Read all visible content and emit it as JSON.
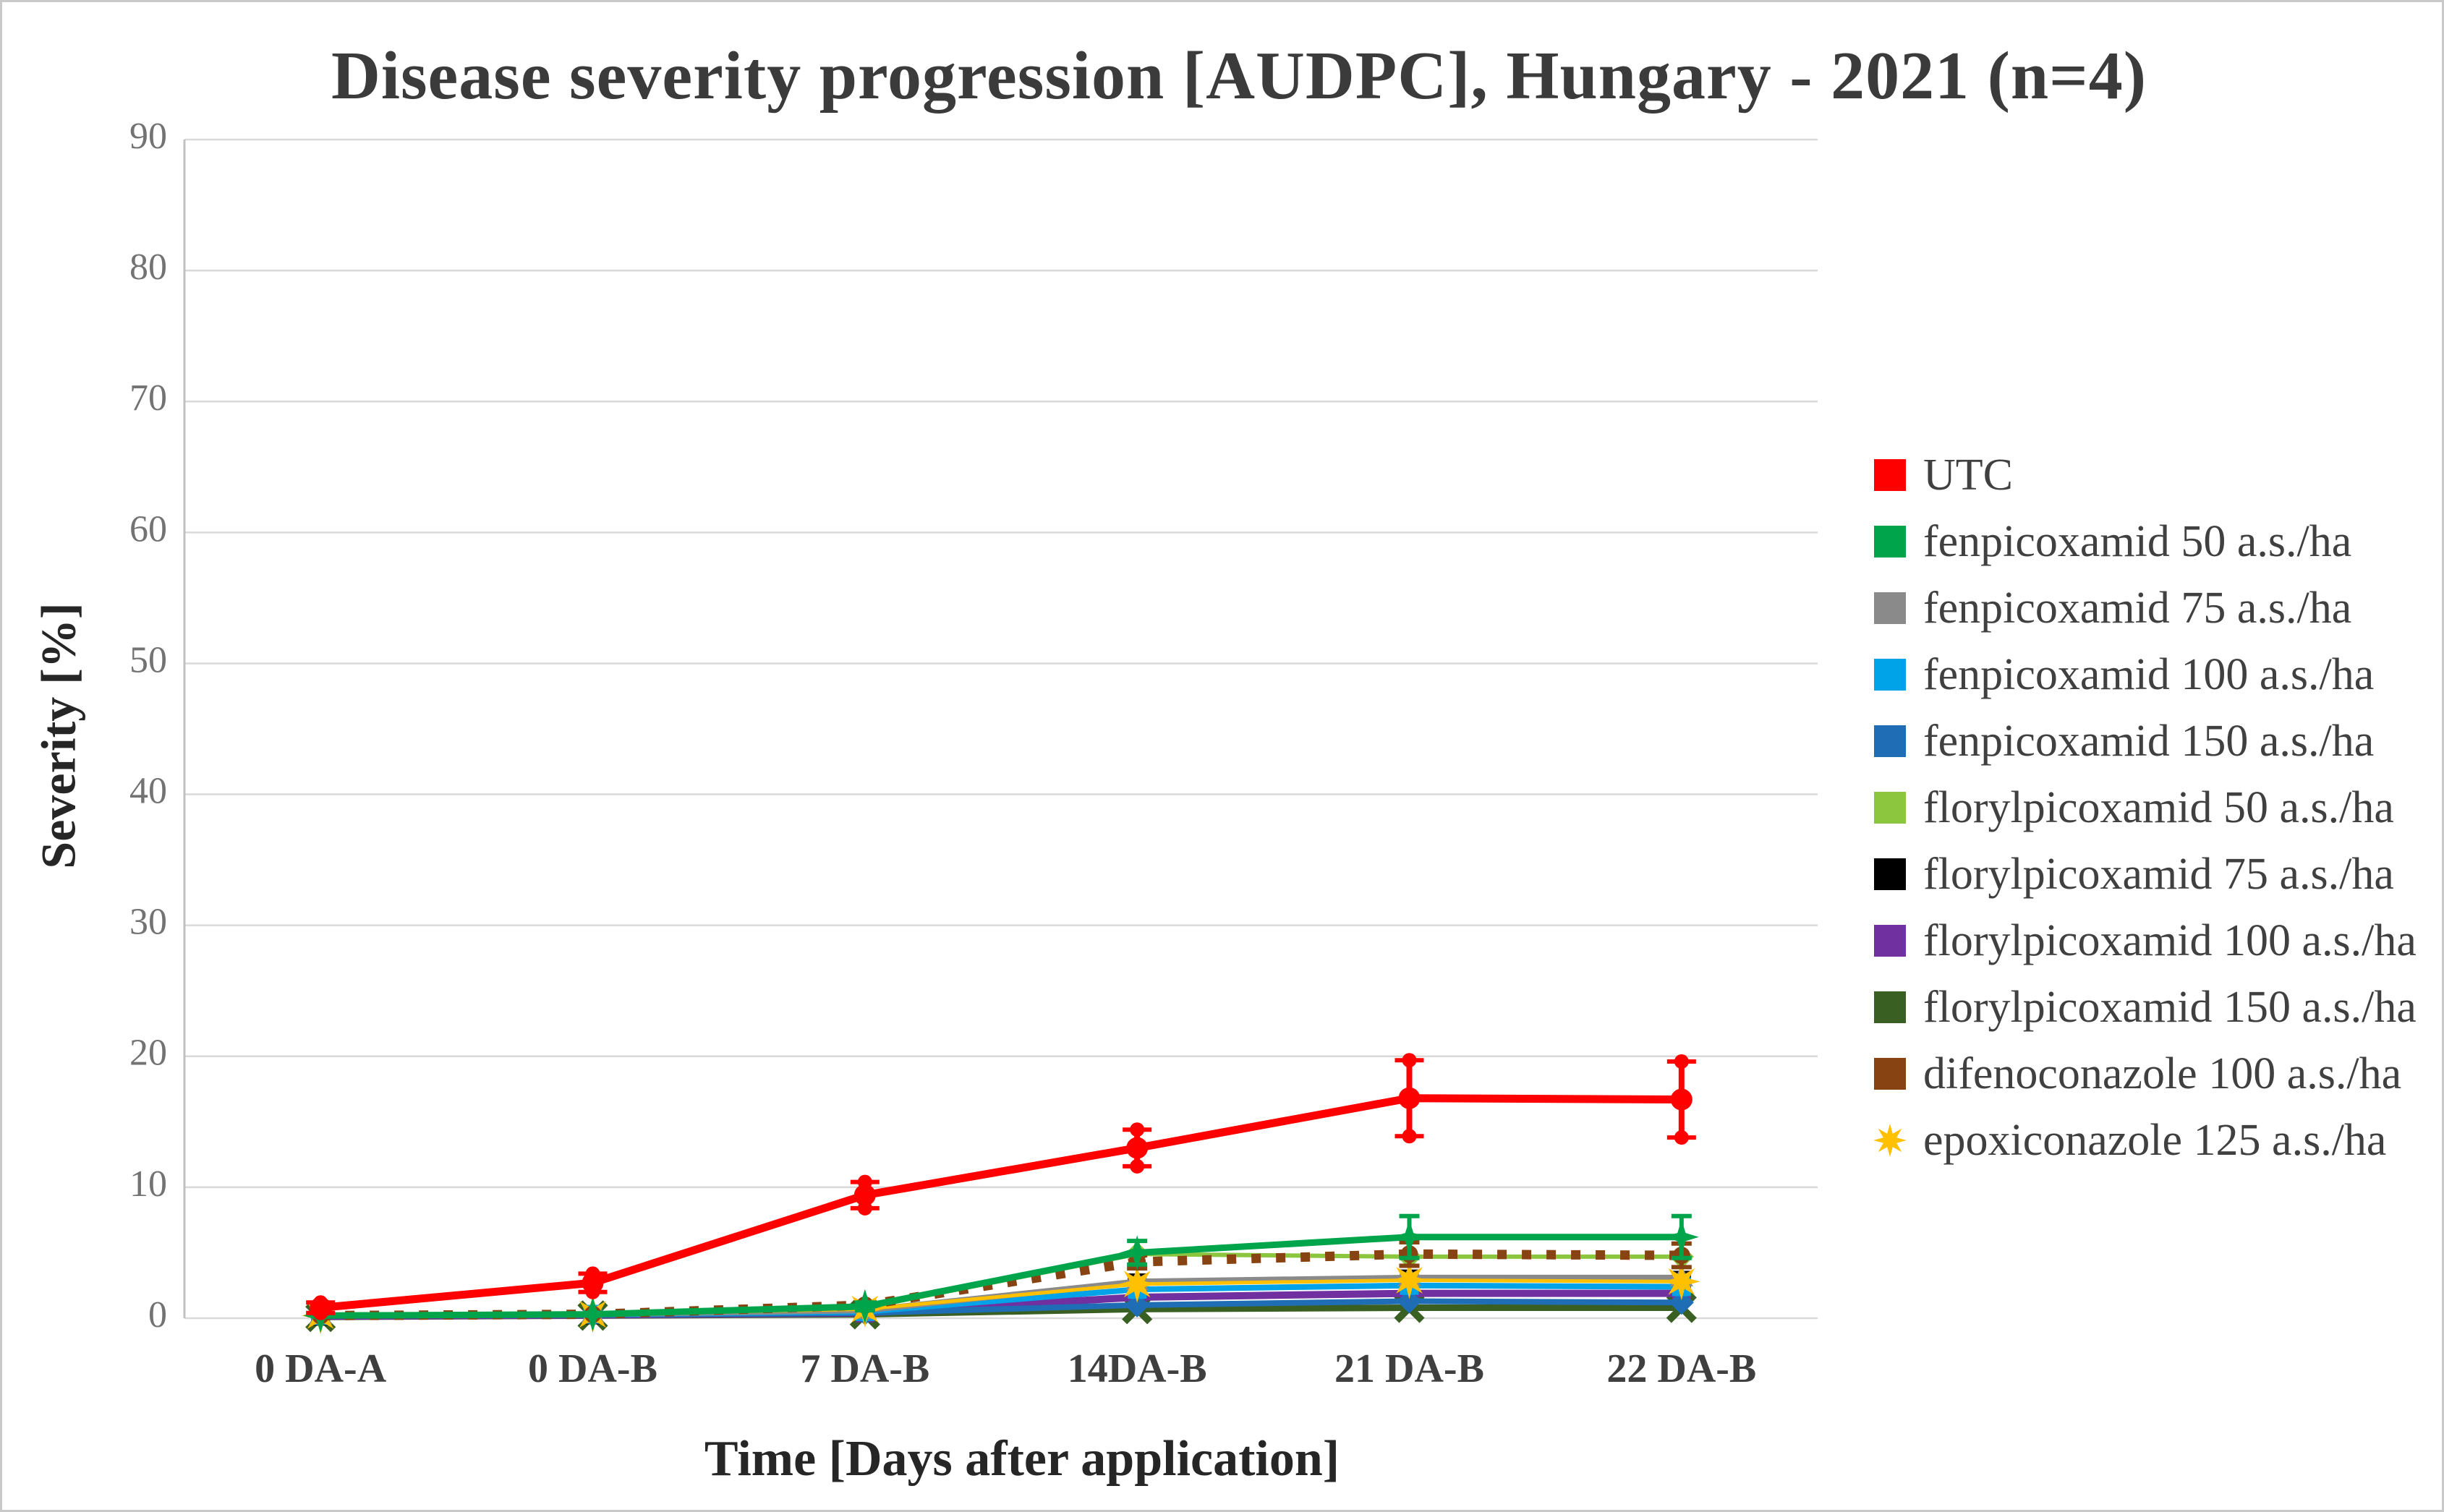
{
  "figure": {
    "background": "#ffffff",
    "border_color": "#c9c9c9",
    "grid_color": "#d9d9d9",
    "axis_line_color": "#c0c0c0",
    "tick_label_color": "#737373",
    "xtick_label_color": "#3f3f3f",
    "legend_text_color": "#404040"
  },
  "chart_data": {
    "type": "line",
    "title": "Disease severity progression [AUDPC], Hungary - 2021 (n=4)",
    "xlabel": "Time [Days after application]",
    "ylabel": "Severity [%]",
    "ylim": [
      0,
      90
    ],
    "ytick_step": 10,
    "yticks": [
      0,
      10,
      20,
      30,
      40,
      50,
      60,
      70,
      80,
      90
    ],
    "grid": "horizontal",
    "legend_position": "right",
    "categories": [
      "0 DA-A",
      "0 DA-B",
      "7 DA-B",
      "14DA-B",
      "21 DA-B",
      "22 DA-B"
    ],
    "series": [
      {
        "name": "UTC",
        "color": "#ff0000",
        "marker": "dot",
        "line_style": "solid",
        "line_width": 11,
        "values": [
          0.8,
          2.7,
          9.4,
          13.0,
          16.8,
          16.7
        ],
        "err": [
          0.4,
          0.7,
          1.0,
          1.4,
          2.9,
          2.9
        ]
      },
      {
        "name": "fenpicoxamid 50 a.s./ha",
        "color": "#00a44a",
        "marker": "star4",
        "line_style": "solid",
        "line_width": 9,
        "values": [
          0.2,
          0.3,
          0.9,
          5.0,
          6.2,
          6.2
        ],
        "err": [
          0,
          0,
          0.3,
          0.9,
          1.6,
          1.6
        ]
      },
      {
        "name": "fenpicoxamid 75 a.s./ha",
        "color": "#8a8a8a",
        "marker": "triangle",
        "line_style": "solid",
        "line_width": 8,
        "values": [
          0.2,
          0.3,
          0.6,
          2.8,
          3.1,
          3.1
        ]
      },
      {
        "name": "fenpicoxamid 100 a.s./ha",
        "color": "#00a2e8",
        "marker": "square",
        "line_style": "solid",
        "line_width": 8,
        "values": [
          0.2,
          0.3,
          0.5,
          2.2,
          2.5,
          2.4
        ]
      },
      {
        "name": "fenpicoxamid 150 a.s./ha",
        "color": "#1f6eb5",
        "marker": "diamond",
        "line_style": "solid",
        "line_width": 8,
        "values": [
          0.2,
          0.25,
          0.4,
          1.0,
          1.3,
          1.2
        ]
      },
      {
        "name": "florylpicoxamid 50 a.s./ha",
        "color": "#8cc63f",
        "marker": "diamond",
        "line_style": "solid",
        "line_width": 6,
        "values": [
          0.2,
          0.3,
          0.8,
          4.9,
          4.7,
          4.7
        ]
      },
      {
        "name": "florylpicoxamid 75 a.s./ha",
        "color": "#000000",
        "marker": "square",
        "line_style": "solid",
        "line_width": 6,
        "values": [
          0.15,
          0.25,
          0.5,
          2.7,
          3.0,
          2.9
        ]
      },
      {
        "name": "florylpicoxamid 100 a.s./ha",
        "color": "#7030a0",
        "marker": "square",
        "line_style": "solid",
        "line_width": 10,
        "values": [
          0.15,
          0.25,
          0.4,
          1.6,
          1.9,
          1.9
        ]
      },
      {
        "name": "florylpicoxamid 150 a.s./ha",
        "color": "#3a5f23",
        "marker": "x",
        "line_style": "solid",
        "line_width": 9,
        "values": [
          0.1,
          0.2,
          0.3,
          0.7,
          0.8,
          0.8
        ]
      },
      {
        "name": "difenoconazole 100 a.s./ha",
        "color": "#874312",
        "marker": "dotsm",
        "line_style": "dotted",
        "line_width": 13,
        "values": [
          0.2,
          0.3,
          1.0,
          4.3,
          4.9,
          4.8
        ],
        "err": [
          0,
          0,
          0,
          0.5,
          0.9,
          0.9
        ]
      },
      {
        "name": "epoxiconazole 125 a.s./ha",
        "color": "#ffc000",
        "marker": "burst",
        "line_style": "solid",
        "line_width": 5,
        "values": [
          0.2,
          0.3,
          0.7,
          2.6,
          2.9,
          2.8
        ]
      }
    ]
  }
}
